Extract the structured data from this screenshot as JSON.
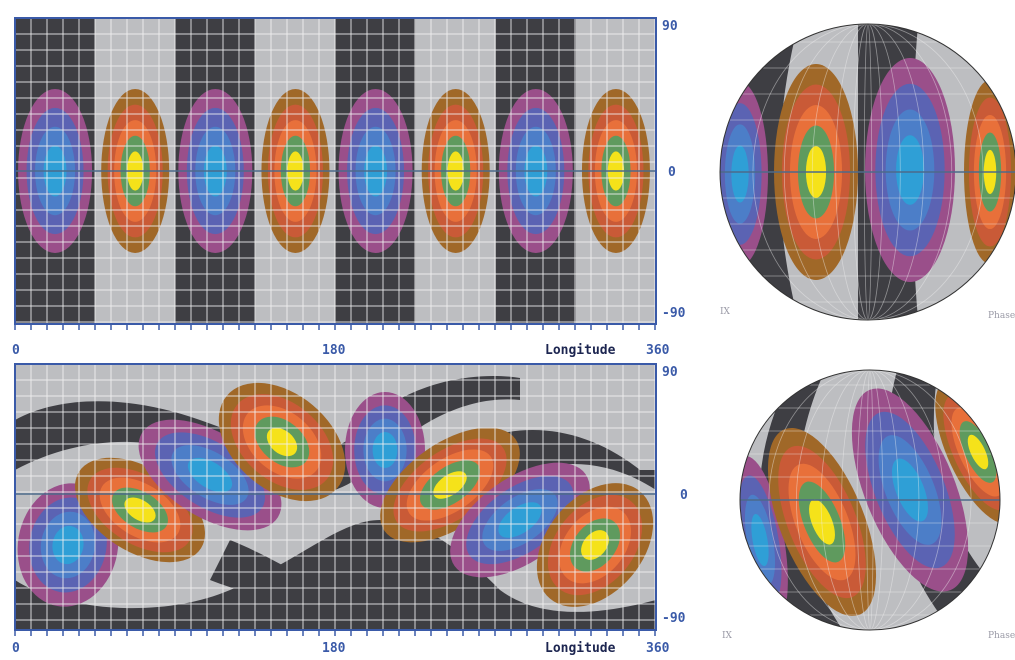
{
  "colors": {
    "bands": [
      "#3e3e43",
      "#bdbec1"
    ],
    "lobe_neg": [
      "#9a4f8a",
      "#5b63b3",
      "#4c7ec8",
      "#2f9fd6"
    ],
    "lobe_pos": [
      "#a06828",
      "#c95a37",
      "#e8703a",
      "#5f9a5e",
      "#f5e21a"
    ],
    "grid": "#f2f2f2",
    "frame": "#3a5aa8",
    "equator": "#4d6a8a"
  },
  "panels": [
    {
      "id": "top",
      "lat_labels": [
        "90",
        "0",
        "-90"
      ],
      "lon_labels": [
        "0",
        "180",
        "360"
      ],
      "lon_title": "Longitude"
    },
    {
      "id": "bottom",
      "lat_labels": [
        "90",
        "0",
        "-90"
      ],
      "lon_labels": [
        "0",
        "180",
        "360"
      ],
      "lon_title": "Longitude"
    }
  ],
  "globe_corner_labels": [
    {
      "left": "IX",
      "right": "Phase"
    },
    {
      "left": "IX",
      "right": "Phase"
    }
  ]
}
